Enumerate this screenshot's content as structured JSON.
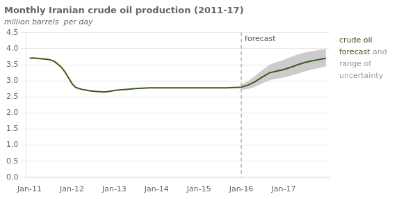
{
  "chart_data": {
    "type": "line",
    "title": "Monthly Iranian crude oil production (2011-17)",
    "subtitle": "million barrels  per day",
    "xlim": [
      -1,
      85
    ],
    "xticks": [
      {
        "value": 0,
        "label": "Jan-11"
      },
      {
        "value": 12,
        "label": "Jan-12"
      },
      {
        "value": 24,
        "label": "Jan-13"
      },
      {
        "value": 36,
        "label": "Jan-14"
      },
      {
        "value": 48,
        "label": "Jan-15"
      },
      {
        "value": 60,
        "label": "Jan-16"
      },
      {
        "value": 72,
        "label": "Jan-17"
      }
    ],
    "ylim": [
      0.0,
      4.5
    ],
    "yticks": [
      {
        "value": 0,
        "label": "0.0"
      },
      0.5,
      {
        "value": 1,
        "label": "1.0"
      },
      1.5,
      {
        "value": 2,
        "label": "2.0"
      },
      2.5,
      {
        "value": 3,
        "label": "3.0"
      },
      3.5,
      {
        "value": 4,
        "label": "4.0"
      },
      4.5
    ],
    "grid": "y",
    "series": [
      {
        "color": "#3a5a1a",
        "x": [
          0,
          1,
          2,
          3,
          4,
          5,
          6,
          7,
          8,
          9,
          10,
          11,
          12,
          13,
          14,
          15,
          16,
          17,
          18,
          19,
          20,
          21,
          22,
          23,
          24,
          26,
          28,
          30,
          32,
          34,
          36,
          38,
          40,
          42,
          44,
          46,
          48,
          50,
          52,
          54,
          56,
          58,
          60
        ],
        "values": [
          3.7,
          3.71,
          3.7,
          3.69,
          3.68,
          3.67,
          3.65,
          3.6,
          3.52,
          3.42,
          3.28,
          3.1,
          2.92,
          2.8,
          2.76,
          2.73,
          2.71,
          2.69,
          2.68,
          2.67,
          2.66,
          2.65,
          2.66,
          2.68,
          2.7,
          2.72,
          2.74,
          2.76,
          2.77,
          2.78,
          2.78,
          2.78,
          2.78,
          2.78,
          2.78,
          2.78,
          2.78,
          2.78,
          2.78,
          2.78,
          2.78,
          2.79,
          2.8
        ]
      },
      {
        "color": "#3a5a1a",
        "x": [
          60,
          62,
          64,
          66,
          68,
          70,
          72,
          74,
          76,
          78,
          80,
          82,
          84
        ],
        "values": [
          2.8,
          2.87,
          2.98,
          3.12,
          3.25,
          3.3,
          3.35,
          3.42,
          3.5,
          3.57,
          3.62,
          3.66,
          3.7
        ]
      },
      {
        "type": "band",
        "color": "#cccccc",
        "x": [
          60,
          62,
          64,
          66,
          68,
          70,
          72,
          74,
          76,
          78,
          80,
          82,
          84
        ],
        "upper": [
          2.88,
          3.0,
          3.16,
          3.34,
          3.5,
          3.58,
          3.65,
          3.74,
          3.82,
          3.88,
          3.92,
          3.96,
          3.98
        ],
        "lower": [
          2.72,
          2.75,
          2.82,
          2.92,
          3.02,
          3.06,
          3.1,
          3.16,
          3.22,
          3.29,
          3.35,
          3.4,
          3.45
        ]
      }
    ],
    "annotations": [
      {
        "type": "vline",
        "x": 60,
        "label": "forecast",
        "color": "#888888"
      },
      {
        "type": "legend_text",
        "lines": [
          [
            {
              "text": "crude oil",
              "color": "#3a5a1a"
            }
          ],
          [
            {
              "text": "forecast",
              "color": "#3a5a1a"
            },
            {
              "text": " and",
              "color": "#999999"
            }
          ],
          [
            {
              "text": "range of",
              "color": "#999999"
            }
          ],
          [
            {
              "text": "uncertainty",
              "color": "#999999"
            }
          ]
        ]
      }
    ]
  }
}
